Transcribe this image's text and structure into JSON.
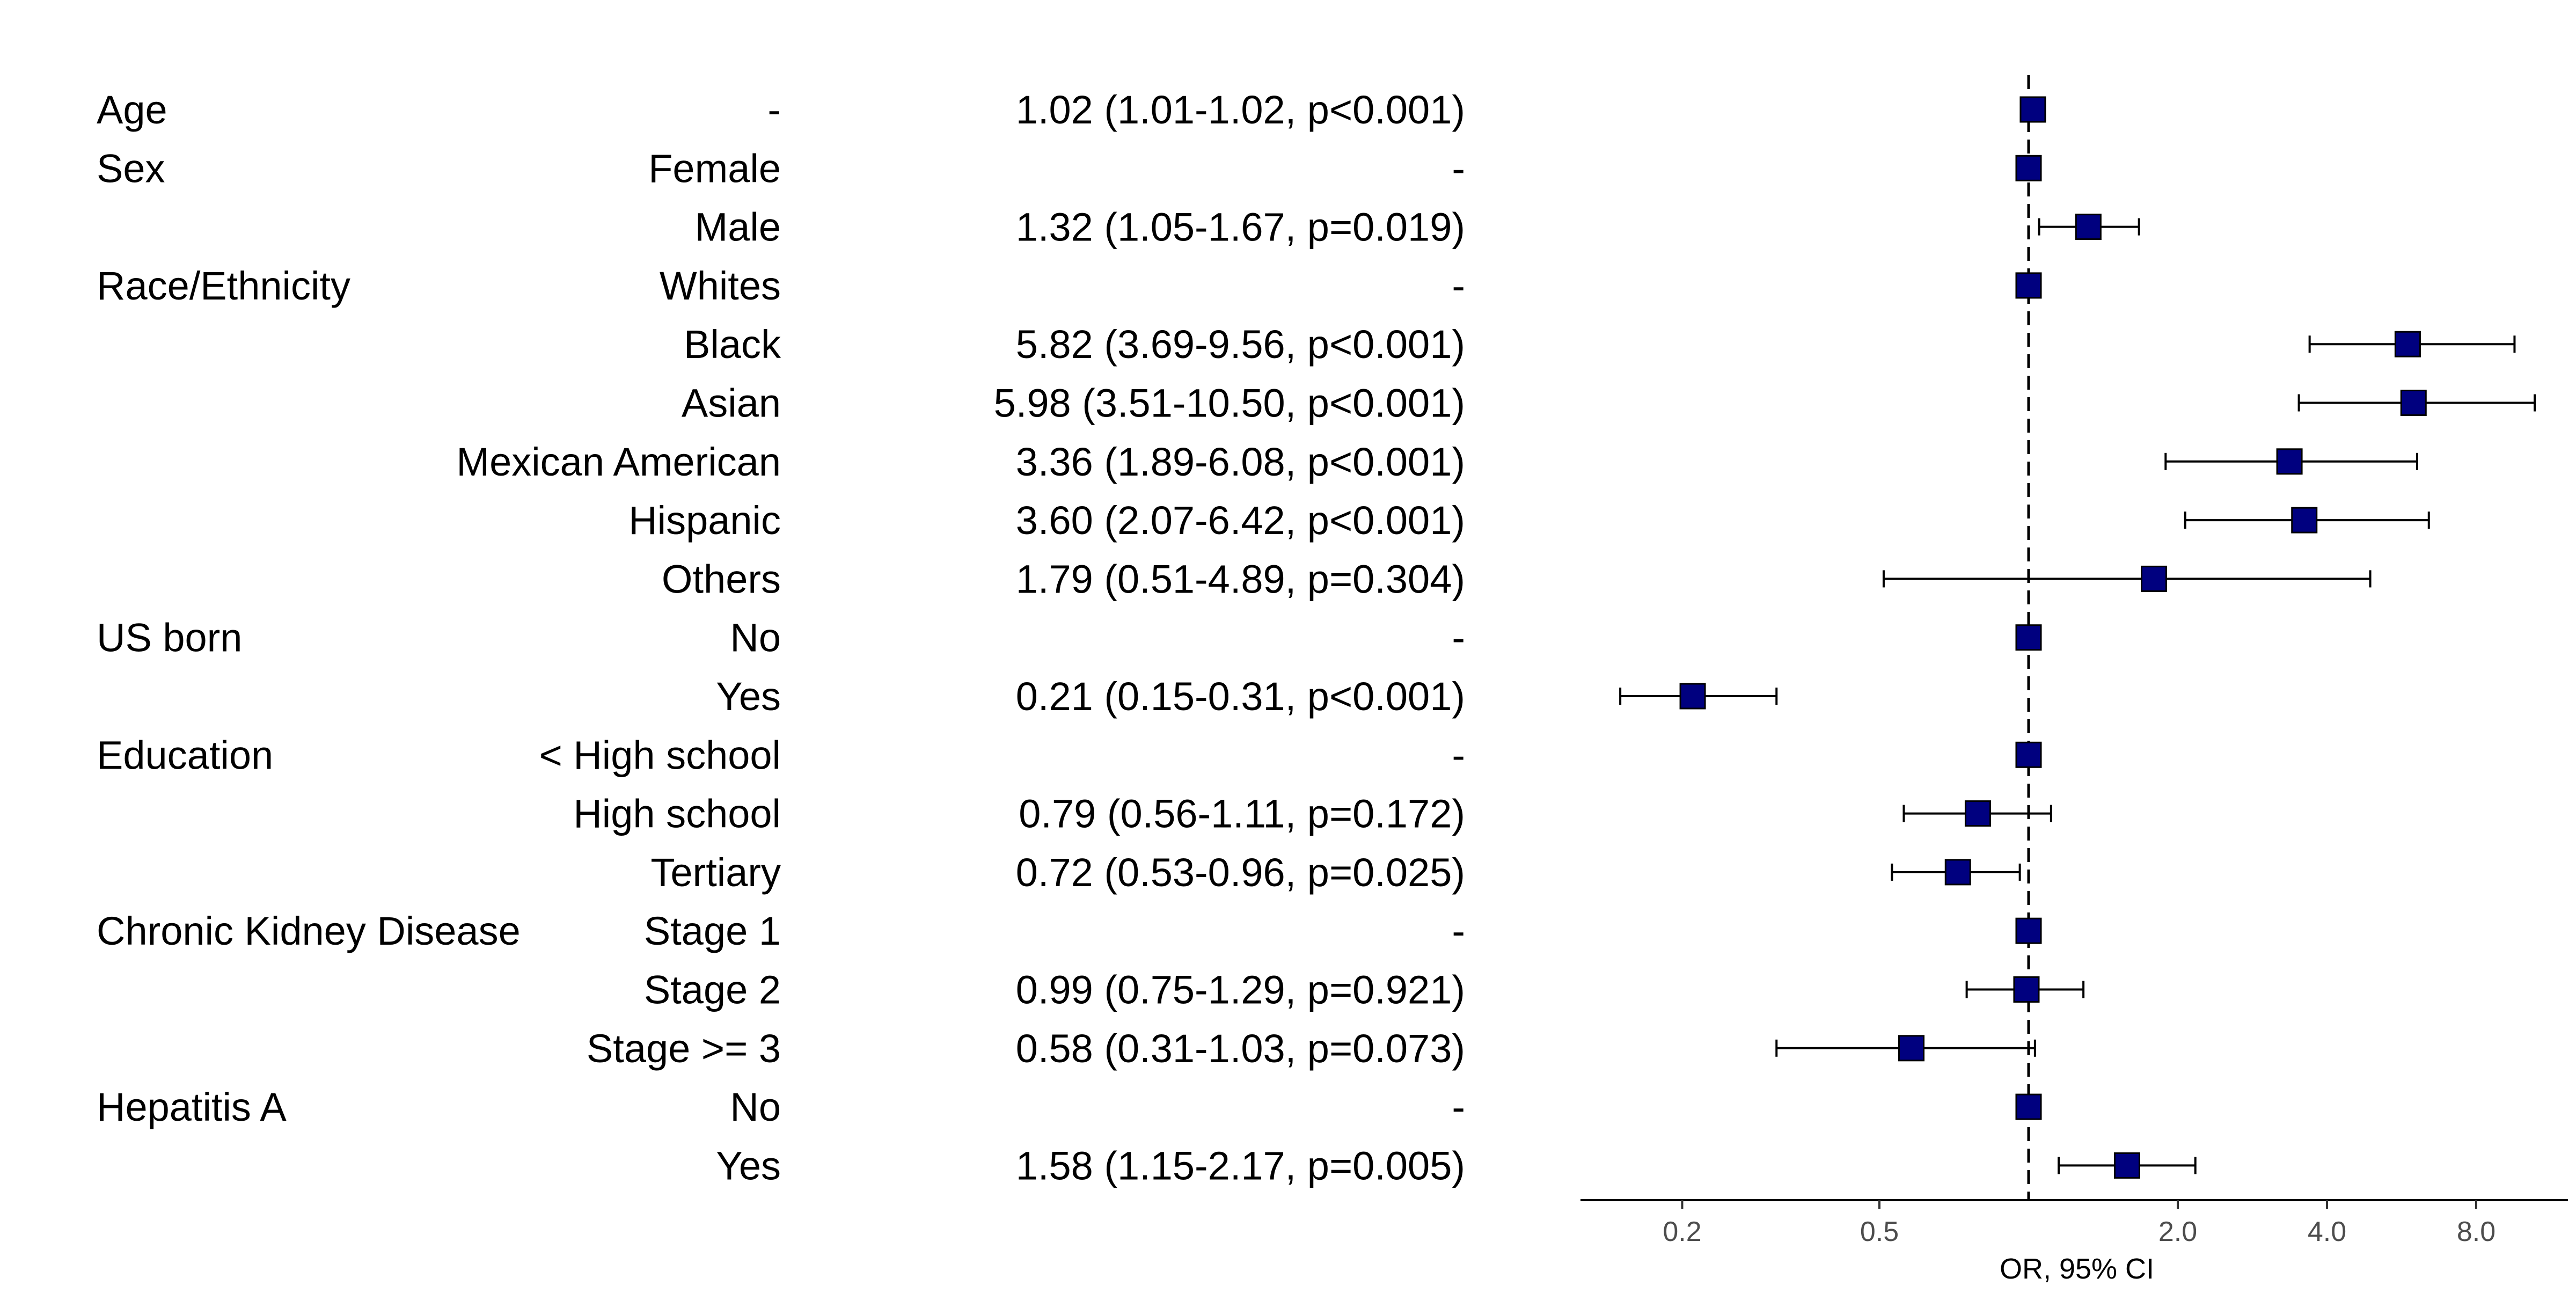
{
  "chart_data": {
    "type": "forest",
    "xlabel": "OR, 95% CI",
    "x_scale": "log2",
    "xlim": [
      0.1,
      16
    ],
    "reference_line": 1.0,
    "x_ticks": [
      {
        "value": 0.2,
        "label": "0.2"
      },
      {
        "value": 0.5,
        "label": "0.5"
      },
      {
        "value": 2.0,
        "label": "2.0"
      },
      {
        "value": 4.0,
        "label": "4.0"
      },
      {
        "value": 8.0,
        "label": "8.0"
      }
    ],
    "colors": {
      "marker": "#00007f",
      "line": "#000000"
    },
    "rows": [
      {
        "variable": "Age",
        "level": "-",
        "text": "1.02 (1.01-1.02, p<0.001)",
        "or": 1.02,
        "lo": 1.01,
        "hi": 1.02
      },
      {
        "variable": "Sex",
        "level": "Female",
        "text": "-",
        "or": 1.0,
        "lo": null,
        "hi": null
      },
      {
        "variable": "",
        "level": "Male",
        "text": "1.32 (1.05-1.67, p=0.019)",
        "or": 1.32,
        "lo": 1.05,
        "hi": 1.67
      },
      {
        "variable": "Race/Ethnicity",
        "level": "Whites",
        "text": "-",
        "or": 1.0,
        "lo": null,
        "hi": null
      },
      {
        "variable": "",
        "level": "Black",
        "text": "5.82 (3.69-9.56, p<0.001)",
        "or": 5.82,
        "lo": 3.69,
        "hi": 9.56
      },
      {
        "variable": "",
        "level": "Asian",
        "text": "5.98 (3.51-10.50, p<0.001)",
        "or": 5.98,
        "lo": 3.51,
        "hi": 10.5
      },
      {
        "variable": "",
        "level": "Mexican American",
        "text": "3.36 (1.89-6.08, p<0.001)",
        "or": 3.36,
        "lo": 1.89,
        "hi": 6.08
      },
      {
        "variable": "",
        "level": "Hispanic",
        "text": "3.60 (2.07-6.42, p<0.001)",
        "or": 3.6,
        "lo": 2.07,
        "hi": 6.42
      },
      {
        "variable": "",
        "level": "Others",
        "text": "1.79 (0.51-4.89, p=0.304)",
        "or": 1.79,
        "lo": 0.51,
        "hi": 4.89
      },
      {
        "variable": "US born",
        "level": "No",
        "text": "-",
        "or": 1.0,
        "lo": null,
        "hi": null
      },
      {
        "variable": "",
        "level": "Yes",
        "text": "0.21 (0.15-0.31, p<0.001)",
        "or": 0.21,
        "lo": 0.15,
        "hi": 0.31
      },
      {
        "variable": "Education",
        "level": "< High school",
        "text": "-",
        "or": 1.0,
        "lo": null,
        "hi": null
      },
      {
        "variable": "",
        "level": "High school",
        "text": "0.79 (0.56-1.11, p=0.172)",
        "or": 0.79,
        "lo": 0.56,
        "hi": 1.11
      },
      {
        "variable": "",
        "level": "Tertiary",
        "text": "0.72 (0.53-0.96, p=0.025)",
        "or": 0.72,
        "lo": 0.53,
        "hi": 0.96
      },
      {
        "variable": "Chronic Kidney Disease",
        "level": "Stage 1",
        "text": "-",
        "or": 1.0,
        "lo": null,
        "hi": null
      },
      {
        "variable": "",
        "level": "Stage 2",
        "text": "0.99 (0.75-1.29, p=0.921)",
        "or": 0.99,
        "lo": 0.75,
        "hi": 1.29
      },
      {
        "variable": "",
        "level": "Stage >= 3",
        "text": "0.58 (0.31-1.03, p=0.073)",
        "or": 0.58,
        "lo": 0.31,
        "hi": 1.03
      },
      {
        "variable": "Hepatitis A",
        "level": "No",
        "text": "-",
        "or": 1.0,
        "lo": null,
        "hi": null
      },
      {
        "variable": "",
        "level": "Yes",
        "text": "1.58 (1.15-2.17, p=0.005)",
        "or": 1.58,
        "lo": 1.15,
        "hi": 2.17
      }
    ]
  }
}
